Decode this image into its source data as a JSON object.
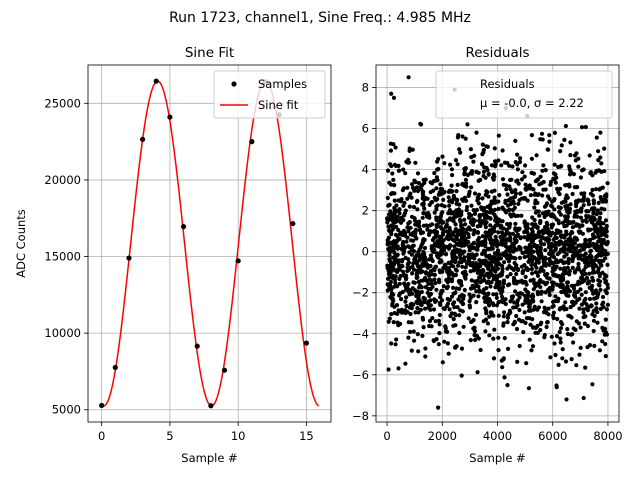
{
  "figure": {
    "suptitle": "Run 1723, channel1, Sine Freq.: 4.985 MHz"
  },
  "chart_data": [
    {
      "type": "line",
      "title": "Sine Fit",
      "xlabel": "Sample #",
      "ylabel": "ADC Counts",
      "xlim": [
        -1,
        16.8
      ],
      "ylim": [
        4200,
        27500
      ],
      "grid": true,
      "xticks": [
        0,
        5,
        10,
        15
      ],
      "yticks": [
        5000,
        10000,
        15000,
        20000,
        25000
      ],
      "legend_location": "top-right",
      "legend": [
        "Samples",
        "Sine fit"
      ],
      "series": [
        {
          "name": "Samples",
          "kind": "scatter",
          "color": "#000000",
          "x": [
            0,
            1,
            2,
            3,
            4,
            5,
            6,
            7,
            8,
            9,
            10,
            11,
            12,
            13,
            14,
            15
          ],
          "y": [
            5280,
            7760,
            14900,
            22650,
            26450,
            24100,
            16950,
            9150,
            5260,
            7580,
            14720,
            22500,
            26400,
            24250,
            17150,
            9350
          ]
        },
        {
          "name": "Sine fit",
          "kind": "line",
          "color": "#ff0000",
          "model": {
            "offset": 15850,
            "amplitude": 10600,
            "period_samples": 7.9,
            "peak_at": 4.1,
            "x_range": [
              0,
              15.9
            ]
          }
        }
      ]
    },
    {
      "type": "scatter",
      "title": "Residuals",
      "xlabel": "Sample #",
      "ylabel": "",
      "xlim": [
        -400,
        8400
      ],
      "ylim": [
        -8.3,
        9.1
      ],
      "grid": true,
      "xticks": [
        0,
        2000,
        4000,
        6000,
        8000
      ],
      "yticks": [
        -8,
        -6,
        -4,
        -2,
        0,
        2,
        4,
        6,
        8
      ],
      "legend_location": "top-right",
      "legend": [
        "Residuals",
        "μ = -0.0, σ = 2.22"
      ],
      "series": [
        {
          "name": "Residuals",
          "color": "#000000",
          "n_points": 8000,
          "mean": -0.0,
          "std": 2.22,
          "x_range": [
            0,
            8000
          ],
          "selected_points": [
            {
              "x": 780,
              "y": 8.5
            },
            {
              "x": 150,
              "y": 7.7
            },
            {
              "x": 250,
              "y": 7.5
            },
            {
              "x": 2450,
              "y": 7.9
            },
            {
              "x": 1850,
              "y": -7.6
            },
            {
              "x": 6500,
              "y": -7.2
            },
            {
              "x": 4300,
              "y": 7.0
            },
            {
              "x": 7900,
              "y": -4.5
            }
          ]
        }
      ]
    }
  ]
}
